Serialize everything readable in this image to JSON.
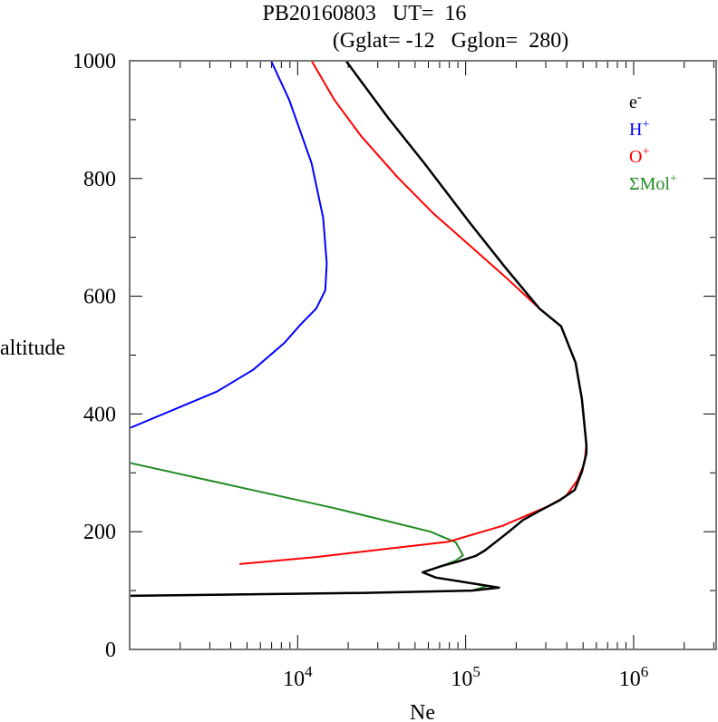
{
  "chart_data": {
    "type": "line",
    "title": "PB20160803   UT=  16",
    "subtitle": "(Gglat= -12   Gglon=  280)",
    "xlabel": "Ne",
    "ylabel": "altitude",
    "xscale": "log",
    "xlim": [
      1000,
      3100000
    ],
    "ylim": [
      0,
      1000
    ],
    "yticks": [
      0,
      200,
      400,
      600,
      800,
      1000
    ],
    "ytick_labels": [
      "0",
      "200",
      "400",
      "600",
      "800",
      "1000"
    ],
    "xticks": [
      10000,
      100000,
      1000000
    ],
    "xtick_labels": [
      {
        "base": "10",
        "exp": "4"
      },
      {
        "base": "10",
        "exp": "5"
      },
      {
        "base": "10",
        "exp": "6"
      }
    ],
    "grid": false,
    "legend_position": "top-right",
    "series": [
      {
        "name": "e",
        "sup": "-",
        "color": "#000000",
        "points": [
          [
            19400,
            1000
          ],
          [
            23900,
            965
          ],
          [
            34600,
            903
          ],
          [
            56700,
            826
          ],
          [
            105000,
            726
          ],
          [
            172000,
            649
          ],
          [
            275000,
            579
          ],
          [
            370000,
            549
          ],
          [
            451000,
            487
          ],
          [
            492000,
            425
          ],
          [
            523000,
            348
          ],
          [
            523000,
            333
          ],
          [
            492000,
            302
          ],
          [
            446000,
            271
          ],
          [
            361000,
            253
          ],
          [
            282000,
            237
          ],
          [
            220000,
            220
          ],
          [
            179000,
            199
          ],
          [
            152000,
            183
          ],
          [
            130000,
            168
          ],
          [
            115000,
            159
          ],
          [
            89500,
            149
          ],
          [
            72600,
            142
          ],
          [
            55400,
            131
          ],
          [
            66600,
            122
          ],
          [
            135000,
            108
          ],
          [
            158000,
            105
          ],
          [
            109000,
            100
          ],
          [
            23900,
            96
          ],
          [
            1000,
            91
          ]
        ]
      },
      {
        "name": "H",
        "sup": "+",
        "color": "#0000ff",
        "points": [
          [
            6950,
            1000
          ],
          [
            8900,
            934
          ],
          [
            12100,
            826
          ],
          [
            14200,
            733
          ],
          [
            14900,
            656
          ],
          [
            14600,
            610
          ],
          [
            12900,
            579
          ],
          [
            10400,
            552
          ],
          [
            8360,
            521
          ],
          [
            5430,
            475
          ],
          [
            3310,
            438
          ],
          [
            1000,
            376
          ]
        ]
      },
      {
        "name": "O",
        "sup": "+",
        "color": "#ff0000",
        "points": [
          [
            12100,
            1000
          ],
          [
            16500,
            934
          ],
          [
            23900,
            872
          ],
          [
            39100,
            803
          ],
          [
            64100,
            741
          ],
          [
            105000,
            687
          ],
          [
            172000,
            633
          ],
          [
            275000,
            579
          ],
          [
            370000,
            549
          ],
          [
            451000,
            487
          ],
          [
            492000,
            425
          ],
          [
            523000,
            348
          ],
          [
            510000,
            317
          ],
          [
            462000,
            287
          ],
          [
            394000,
            260
          ],
          [
            308000,
            243
          ],
          [
            166000,
            210
          ],
          [
            79100,
            183
          ],
          [
            39100,
            173
          ],
          [
            12900,
            157
          ],
          [
            4510,
            145
          ]
        ]
      },
      {
        "name": "ΣMol",
        "sup": "+",
        "color": "#228b22",
        "points": [
          [
            1000,
            317
          ],
          [
            16500,
            240
          ],
          [
            39100,
            214
          ],
          [
            61800,
            200
          ],
          [
            87300,
            182
          ],
          [
            96400,
            160
          ],
          [
            87300,
            151
          ],
          [
            72600,
            142
          ],
          [
            55400,
            131
          ],
          [
            66600,
            122
          ],
          [
            135000,
            108
          ],
          [
            109000,
            100
          ],
          [
            23900,
            96
          ],
          [
            1000,
            91
          ]
        ]
      }
    ]
  }
}
